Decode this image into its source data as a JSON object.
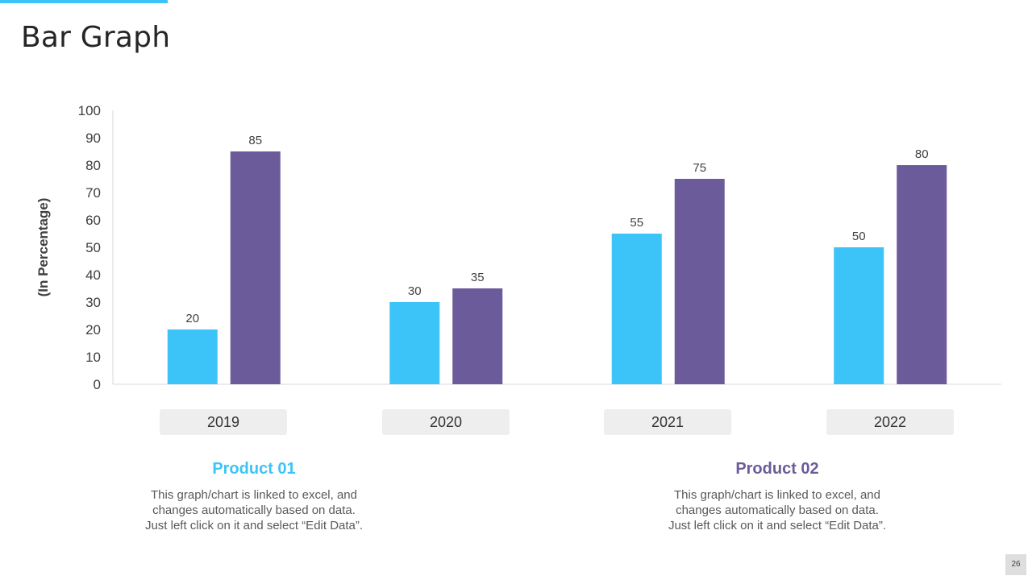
{
  "slide": {
    "title": "Bar Graph",
    "page_number": "26"
  },
  "colors": {
    "accent": "#3cc4f8",
    "product_01": "#3cc4f8",
    "product_02": "#6b5b9a"
  },
  "chart_data": {
    "type": "bar",
    "title": "",
    "xlabel": "",
    "ylabel": "(In Percentage)",
    "ylim": [
      0,
      100
    ],
    "yticks": [
      0,
      10,
      20,
      30,
      40,
      50,
      60,
      70,
      80,
      90,
      100
    ],
    "categories": [
      "2019",
      "2020",
      "2021",
      "2022"
    ],
    "series": [
      {
        "name": "Product 01",
        "values": [
          20,
          30,
          55,
          50
        ]
      },
      {
        "name": "Product 02",
        "values": [
          85,
          35,
          75,
          80
        ]
      }
    ],
    "grid": false,
    "legend": "bottom"
  },
  "legend": [
    {
      "title": "Product 01",
      "lines": [
        "This graph/chart is linked to excel, and",
        "changes automatically based on data.",
        "Just left click on it and select “Edit Data”."
      ]
    },
    {
      "title": "Product 02",
      "lines": [
        "This graph/chart is linked to excel, and",
        "changes automatically based on data.",
        "Just left click on it and select “Edit Data”."
      ]
    }
  ]
}
